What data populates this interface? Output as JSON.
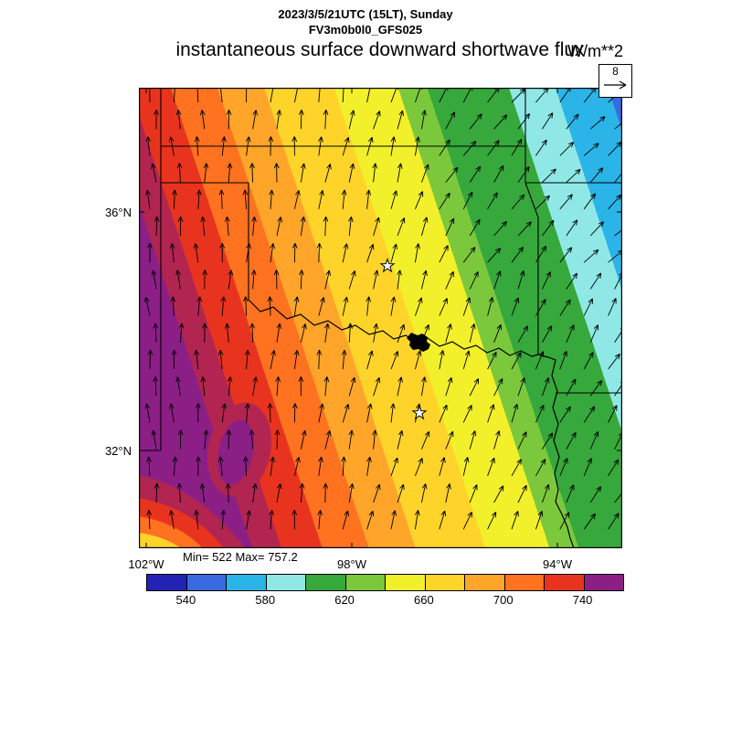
{
  "header": {
    "datetime_line": "2023/3/5/21UTC (15LT), Sunday",
    "model_line": "FV3m0b0l0_GFS025",
    "title": "instantaneous surface downward shortwave flux",
    "units": "W/m**2"
  },
  "stats": {
    "min_max": "Min= 522 Max= 757.2"
  },
  "axes": {
    "lat_ticks": [
      {
        "label": "36°N"
      },
      {
        "label": "32°N"
      }
    ],
    "lon_ticks": [
      {
        "label": "102°W"
      },
      {
        "label": "98°W"
      },
      {
        "label": "94°W"
      }
    ]
  },
  "wind_legend": {
    "reference_value": "8"
  },
  "colorbar": {
    "tick_labels": [
      "540",
      "580",
      "620",
      "660",
      "700",
      "740"
    ],
    "levels": [
      520,
      540,
      560,
      580,
      600,
      620,
      640,
      660,
      680,
      700,
      720,
      740,
      760
    ],
    "colors": [
      "#2222b4",
      "#3a6ae0",
      "#2ab4e8",
      "#8fe8e6",
      "#36a83c",
      "#7cc83c",
      "#f2f02a",
      "#ffd42a",
      "#ffa52a",
      "#ff7220",
      "#e8341e",
      "#8c1f86"
    ]
  },
  "map_colors": {
    "crimson": "#b22550",
    "border": "#000000"
  },
  "chart_data": {
    "type": "heatmap",
    "title": "instantaneous surface downward shortwave flux",
    "units": "W/m**2",
    "valid_time": "2023/3/5/21UTC (15LT), Sunday",
    "model_run": "FV3m0b0l0_GFS025",
    "field_min": 522,
    "field_max": 757.2,
    "contour_levels": [
      520,
      540,
      560,
      580,
      600,
      620,
      640,
      660,
      680,
      700,
      720,
      740,
      760
    ],
    "colorbar_tick_labels": [
      540,
      580,
      620,
      660,
      700,
      740
    ],
    "colors_low_to_high": [
      "#2222b4",
      "#3a6ae0",
      "#2ab4e8",
      "#8fe8e6",
      "#36a83c",
      "#7cc83c",
      "#f2f02a",
      "#ffd42a",
      "#ffa52a",
      "#ff7220",
      "#e8341e",
      "#8c1f86"
    ],
    "x_axis": {
      "label": "longitude",
      "ticks": [
        "102°W",
        "98°W",
        "94°W"
      ]
    },
    "y_axis": {
      "label": "latitude",
      "ticks": [
        "36°N",
        "32°N"
      ]
    },
    "wind": {
      "reference_vector": 8,
      "pattern": "southerly flow; arrows point north over the west, veering north-northeast to northeast toward the east and northeast corner"
    },
    "spatial_pattern": "flux highest (~757 W/m**2, purple/dark red bands) along the western edge, decreasing eastward through red, orange and a broad yellow band over central Texas/Oklahoma, to green, cyan and blue (~522 W/m**2) in the northeast corner; small purple maximum pocket in the lower-left quadrant",
    "region": "Texas / Oklahoma region with state borders, Red River, two star city markers and a black lake blob",
    "legend_position": "horizontal colorbar below map",
    "grid": false
  }
}
